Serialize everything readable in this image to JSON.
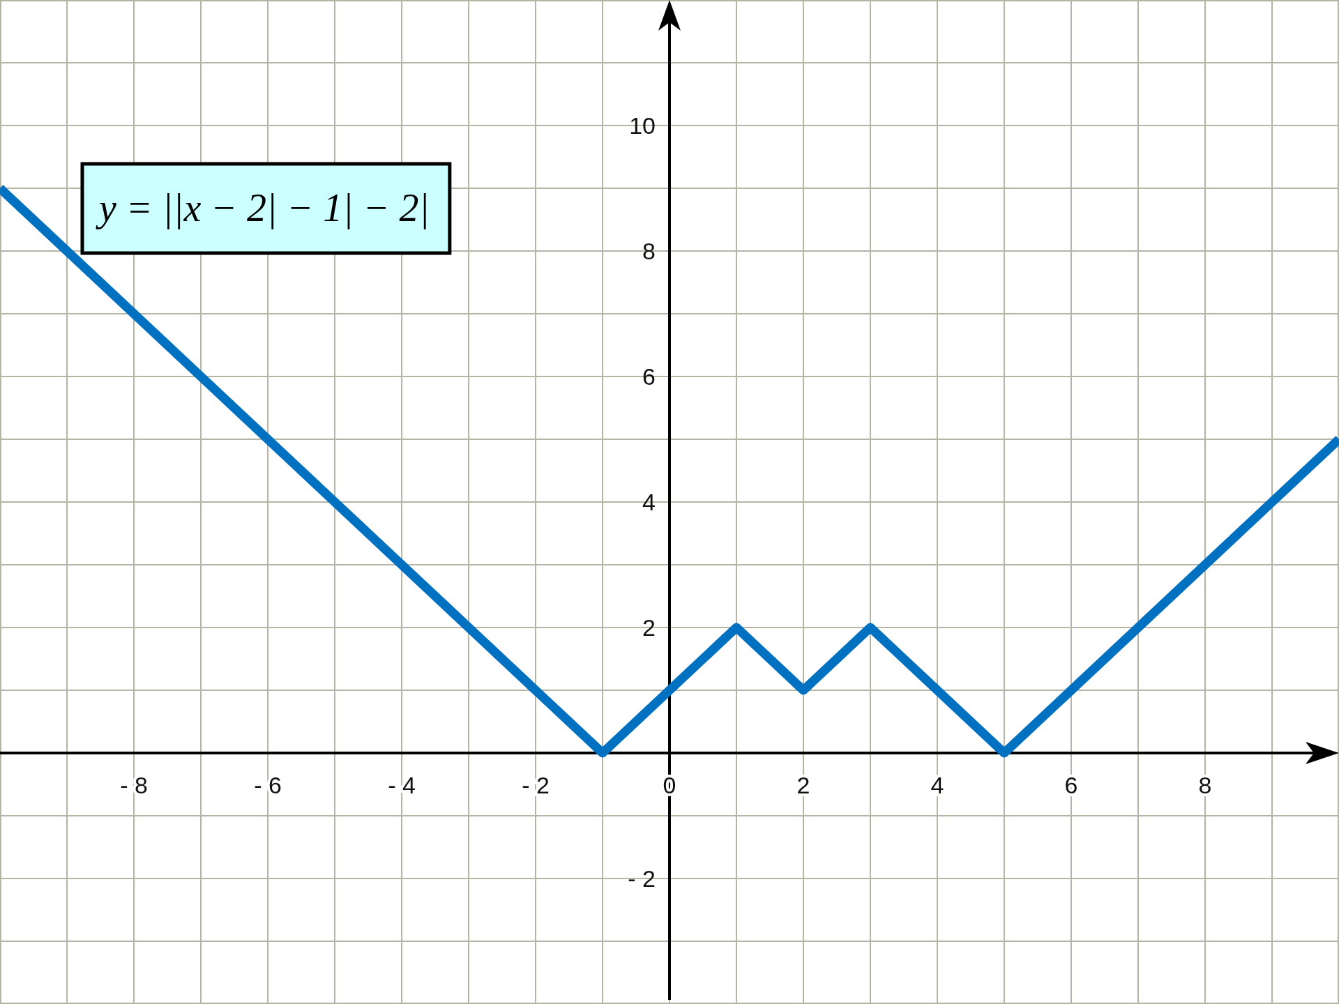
{
  "chart_data": {
    "type": "line",
    "xlim": [
      -10,
      10
    ],
    "ylim": [
      -4,
      12
    ],
    "xticks": [
      {
        "value": -10,
        "label": null
      },
      {
        "value": -9,
        "label": null
      },
      {
        "value": -8,
        "label": "- 8"
      },
      {
        "value": -7,
        "label": null
      },
      {
        "value": -6,
        "label": "- 6"
      },
      {
        "value": -5,
        "label": null
      },
      {
        "value": -4,
        "label": "- 4"
      },
      {
        "value": -3,
        "label": null
      },
      {
        "value": -2,
        "label": "- 2"
      },
      {
        "value": -1,
        "label": null
      },
      0,
      {
        "value": 1,
        "label": null
      },
      2,
      {
        "value": 3,
        "label": null
      },
      4,
      {
        "value": 5,
        "label": null
      },
      6,
      {
        "value": 7,
        "label": null
      },
      8,
      {
        "value": 9,
        "label": null
      },
      {
        "value": 10,
        "label": null
      }
    ],
    "yticks": [
      {
        "value": -4,
        "label": null
      },
      {
        "value": -3,
        "label": null
      },
      {
        "value": -2,
        "label": "- 2"
      },
      {
        "value": -1,
        "label": null
      },
      {
        "value": 0,
        "label": null
      },
      {
        "value": 1,
        "label": null
      },
      2,
      {
        "value": 3,
        "label": null
      },
      4,
      {
        "value": 5,
        "label": null
      },
      6,
      {
        "value": 7,
        "label": null
      },
      8,
      {
        "value": 9,
        "label": null
      },
      10,
      {
        "value": 11,
        "label": null
      },
      {
        "value": 12,
        "label": null
      }
    ],
    "grid": true,
    "annotations": [
      "y = ||x − 2| − 1| − 2|"
    ],
    "series": [
      {
        "color": "#0070c0",
        "x": [
          -10,
          -1,
          1,
          2,
          3,
          5,
          10
        ],
        "values": [
          9,
          0,
          2,
          1,
          2,
          0,
          5
        ]
      }
    ]
  }
}
